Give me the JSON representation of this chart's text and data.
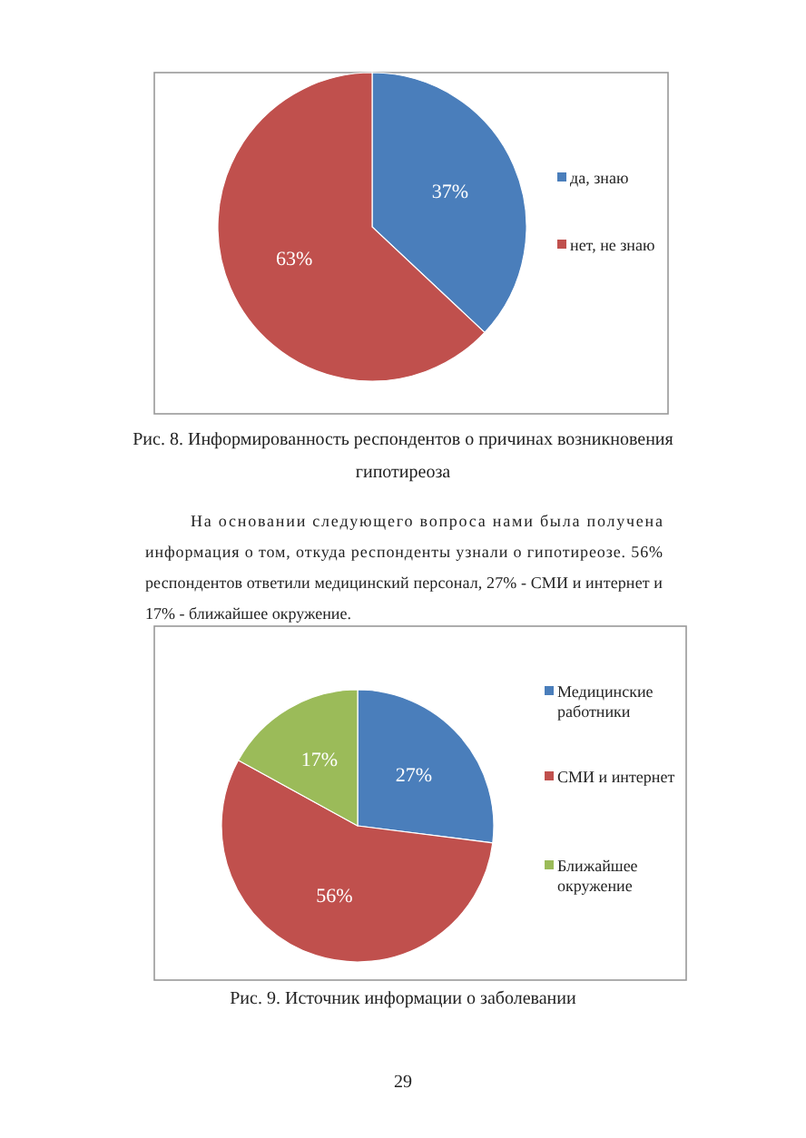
{
  "chart_data": [
    {
      "type": "pie",
      "title": "Рис. 8. Информированность респондентов о причинах возникновения гипотиреоза",
      "categories": [
        "да, знаю",
        "нет, не знаю"
      ],
      "values": [
        37,
        63
      ],
      "colors": [
        "#4a7ebb",
        "#c0504d"
      ],
      "value_labels": [
        "37%",
        "63%"
      ],
      "legend": "right",
      "annotations": [
        "На основании следующего вопроса нами была получена информация о том, откуда респонденты узнали о гипотиреозе. 56% респондентов ответили медицинский персонал, 27% - СМИ и интернет и 17% - ближайшее окружение."
      ]
    },
    {
      "type": "pie",
      "title": "Рис. 9. Источник информации о заболевании",
      "categories": [
        "Медицинские работники",
        "СМИ и интернет",
        "Ближайшее окружение"
      ],
      "values": [
        27,
        56,
        17
      ],
      "colors": [
        "#4a7ebb",
        "#c0504d",
        "#9bbb59"
      ],
      "value_labels": [
        "27%",
        "56%",
        "17%"
      ],
      "legend": "right",
      "annotations": [
        "29"
      ]
    }
  ]
}
